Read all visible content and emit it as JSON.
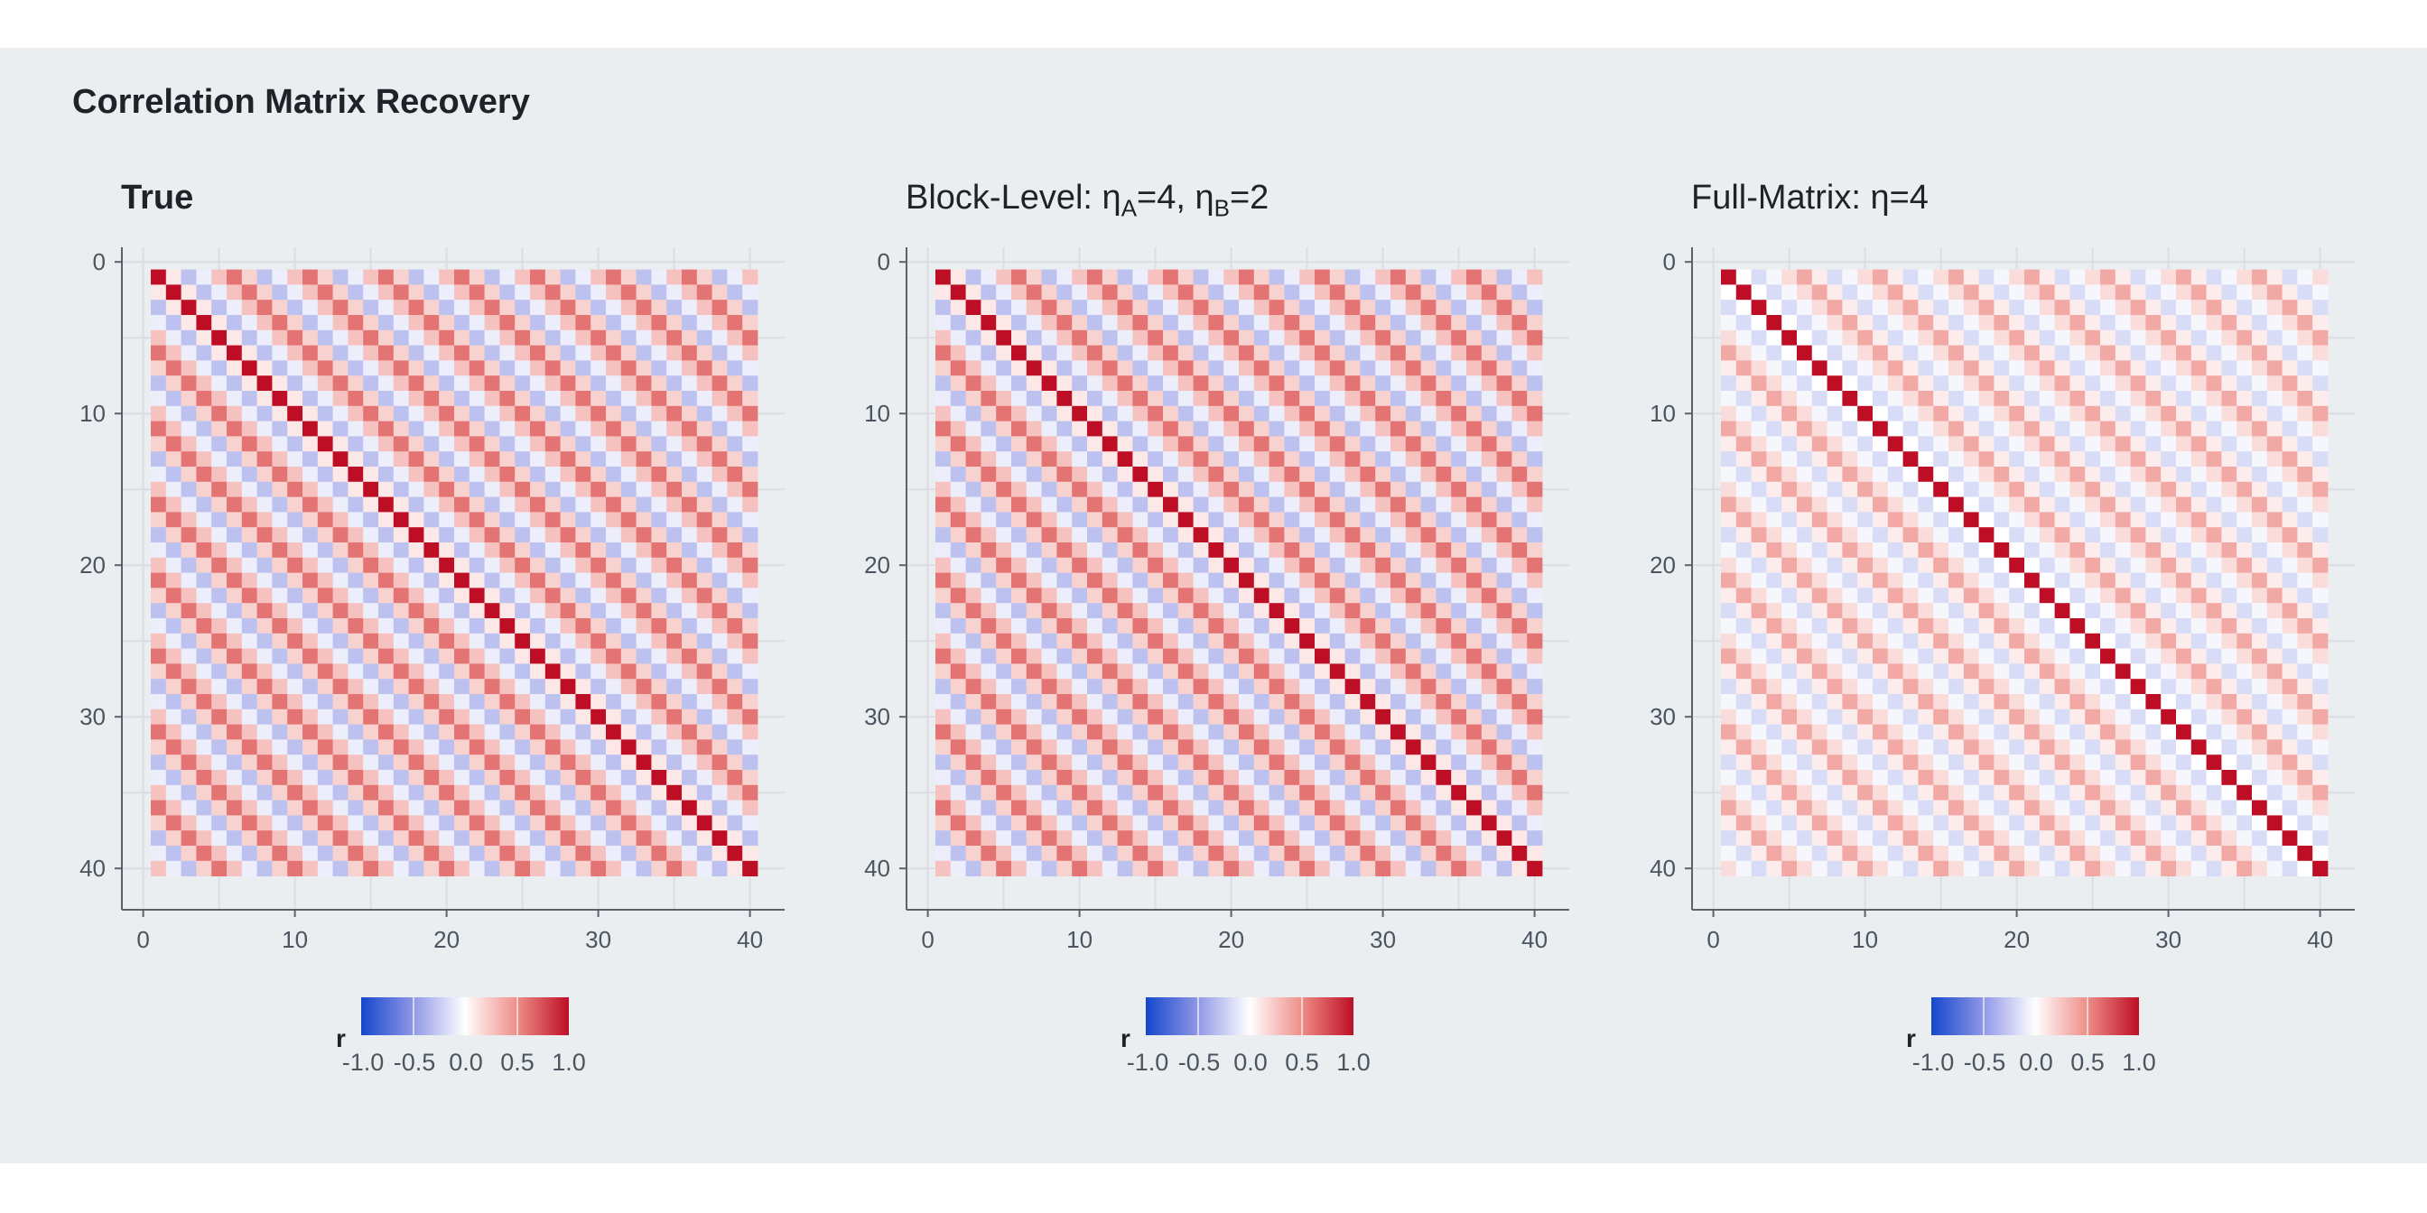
{
  "title": "Correlation Matrix Recovery",
  "colorbar": {
    "label": "r",
    "ticks": [
      "-1.0",
      "-0.5",
      "0.0",
      "0.5",
      "1.0"
    ],
    "colors": [
      "#1447CC",
      "#8F97E6",
      "#FFFFFF",
      "#EE8E88",
      "#BE0E25"
    ]
  },
  "chart_data": [
    {
      "type": "heatmap",
      "title": "True",
      "title_bold": true,
      "n": 40,
      "x_ticks": [
        "0",
        "10",
        "20",
        "30",
        "40"
      ],
      "y_ticks": [
        "0",
        "10",
        "20",
        "30",
        "40"
      ],
      "value_rule": "r[i][j] = lag_profile[|i-j|]",
      "lag_profile": [
        1.0,
        0.1,
        -0.3,
        -0.08,
        0.27,
        0.6,
        0.2,
        -0.3,
        -0.08,
        0.27,
        0.6,
        0.2,
        -0.3,
        -0.08,
        0.27,
        0.6,
        0.2,
        -0.3,
        -0.08,
        0.27,
        0.6,
        0.2,
        -0.3,
        -0.08,
        0.27,
        0.6,
        0.2,
        -0.3,
        -0.08,
        0.27,
        0.6,
        0.2,
        -0.3,
        -0.08,
        0.27,
        0.6,
        0.2,
        -0.3,
        -0.08,
        0.27
      ],
      "zlim": [
        -1,
        1
      ]
    },
    {
      "type": "heatmap",
      "title_parts": [
        "Block-Level: ",
        "η",
        "A",
        "=4, ",
        "η",
        "B",
        "=2"
      ],
      "n": 40,
      "x_ticks": [
        "0",
        "10",
        "20",
        "30",
        "40"
      ],
      "y_ticks": [
        "0",
        "10",
        "20",
        "30",
        "40"
      ],
      "value_rule": "r[i][j] = lag_profile[|i-j|]",
      "lag_profile": [
        1.0,
        0.1,
        -0.3,
        -0.08,
        0.27,
        0.6,
        0.2,
        -0.3,
        -0.08,
        0.27,
        0.6,
        0.2,
        -0.3,
        -0.08,
        0.27,
        0.6,
        0.2,
        -0.3,
        -0.08,
        0.27,
        0.6,
        0.2,
        -0.3,
        -0.08,
        0.27,
        0.6,
        0.2,
        -0.3,
        -0.08,
        0.27,
        0.6,
        0.2,
        -0.3,
        -0.08,
        0.27,
        0.6,
        0.2,
        -0.3,
        -0.08,
        0.27
      ],
      "zlim": [
        -1,
        1
      ]
    },
    {
      "type": "heatmap",
      "title_parts": [
        "Full-Matrix: ",
        "η",
        "=4"
      ],
      "n": 40,
      "x_ticks": [
        "0",
        "10",
        "20",
        "30",
        "40"
      ],
      "y_ticks": [
        "0",
        "10",
        "20",
        "30",
        "40"
      ],
      "value_rule": "r[i][j] = lag_profile[|i-j|]",
      "lag_profile": [
        1.0,
        0.0,
        -0.17,
        -0.04,
        0.15,
        0.38,
        0.08,
        -0.17,
        -0.04,
        0.15,
        0.38,
        0.08,
        -0.17,
        -0.04,
        0.15,
        0.38,
        0.08,
        -0.17,
        -0.04,
        0.15,
        0.38,
        0.08,
        -0.17,
        -0.04,
        0.15,
        0.38,
        0.08,
        -0.17,
        -0.04,
        0.15,
        0.38,
        0.08,
        -0.17,
        -0.04,
        0.15,
        0.38,
        0.08,
        -0.17,
        -0.04,
        0.15
      ],
      "zlim": [
        -1,
        1
      ]
    }
  ]
}
